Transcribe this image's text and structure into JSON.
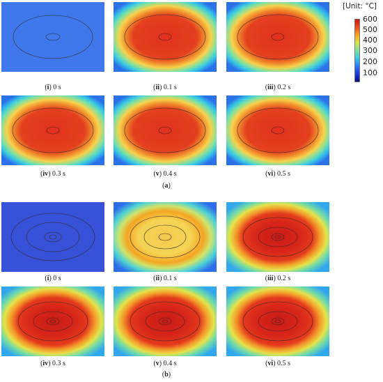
{
  "colorbar": {
    "title": "[Unit: °C]",
    "ticks": [
      "600",
      "500",
      "400",
      "300",
      "200",
      "100"
    ],
    "tick_values": [
      600,
      500,
      400,
      300,
      200,
      100
    ],
    "range": [
      20,
      620
    ],
    "colors": [
      "#0b0f86",
      "#1a39d8",
      "#2e7bf0",
      "#3cc6e6",
      "#7fe0a2",
      "#d8e24a",
      "#f5a623",
      "#ea4a1f",
      "#c81b14"
    ]
  },
  "groups": [
    {
      "paren_open": "(",
      "letter": "a",
      "paren_close": ")",
      "panels": [
        {
          "roman": "i",
          "time": "0 s",
          "field": "low"
        },
        {
          "roman": "ii",
          "time": "0.1 s",
          "field": "hot"
        },
        {
          "roman": "iii",
          "time": "0.2 s",
          "field": "hot"
        },
        {
          "roman": "iv",
          "time": "0.3 s",
          "field": "hot"
        },
        {
          "roman": "v",
          "time": "0.4 s",
          "field": "hot"
        },
        {
          "roman": "vi",
          "time": "0.5 s",
          "field": "hot"
        }
      ]
    },
    {
      "paren_open": "(",
      "letter": "b",
      "paren_close": ")",
      "panels": [
        {
          "roman": "i",
          "time": "0 s",
          "field": "low-rings"
        },
        {
          "roman": "ii",
          "time": "0.1 s",
          "field": "warm-rings"
        },
        {
          "roman": "iii",
          "time": "0.2 s",
          "field": "hot-rings"
        },
        {
          "roman": "iv",
          "time": "0.3 s",
          "field": "hot-rings"
        },
        {
          "roman": "v",
          "time": "0.4 s",
          "field": "hot-rings"
        },
        {
          "roman": "vi",
          "time": "0.5 s",
          "field": "hot-rings"
        }
      ]
    }
  ]
}
